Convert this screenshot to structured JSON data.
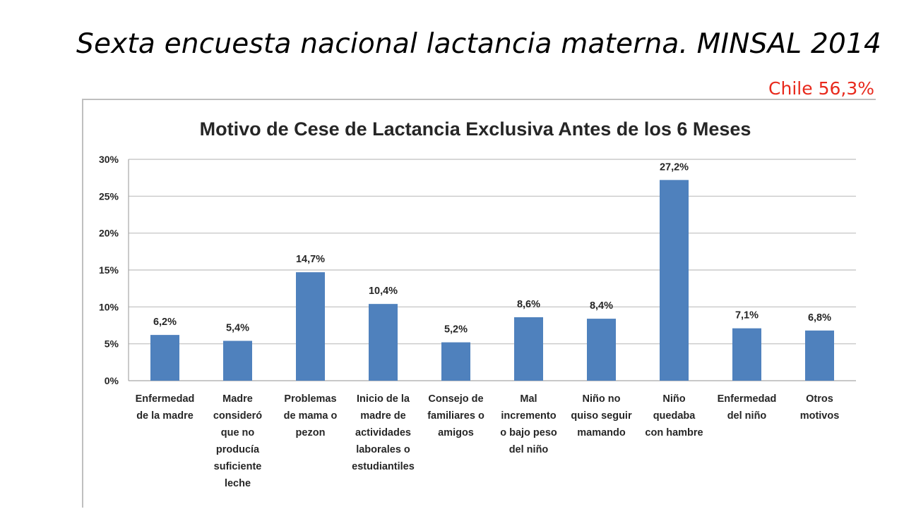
{
  "slide": {
    "title": "Sexta encuesta nacional lactancia materna.  MINSAL 2014",
    "note": "Chile 56,3%"
  },
  "chart_data": {
    "type": "bar",
    "title": "Motivo de Cese de Lactancia Exclusiva Antes de los 6 Meses",
    "xlabel": "",
    "ylabel": "",
    "ylim": [
      0,
      30
    ],
    "yticks": [
      "0%",
      "5%",
      "10%",
      "15%",
      "20%",
      "25%",
      "30%"
    ],
    "grid": true,
    "bar_color": "#4f81bd",
    "categories": [
      [
        "Enfermedad",
        "de la madre"
      ],
      [
        "Madre",
        "consideró",
        "que no",
        "producía",
        "suficiente",
        "leche"
      ],
      [
        "Problemas",
        "de mama o",
        "pezon"
      ],
      [
        "Inicio de la",
        "madre de",
        "actividades",
        "laborales o",
        "estudiantiles"
      ],
      [
        "Consejo de",
        "familiares o",
        "amigos"
      ],
      [
        "Mal",
        "incremento",
        "o bajo peso",
        "del niño"
      ],
      [
        "Niño no",
        "quiso seguir",
        "mamando"
      ],
      [
        "Niño",
        "quedaba",
        "con hambre"
      ],
      [
        "Enfermedad",
        "del niño"
      ],
      [
        "Otros",
        "motivos"
      ]
    ],
    "values": [
      6.2,
      5.4,
      14.7,
      10.4,
      5.2,
      8.6,
      8.4,
      27.2,
      7.1,
      6.8
    ],
    "data_labels": [
      "6,2%",
      "5,4%",
      "14,7%",
      "10,4%",
      "5,2%",
      "8,6%",
      "8,4%",
      "27,2%",
      "7,1%",
      "6,8%"
    ]
  }
}
